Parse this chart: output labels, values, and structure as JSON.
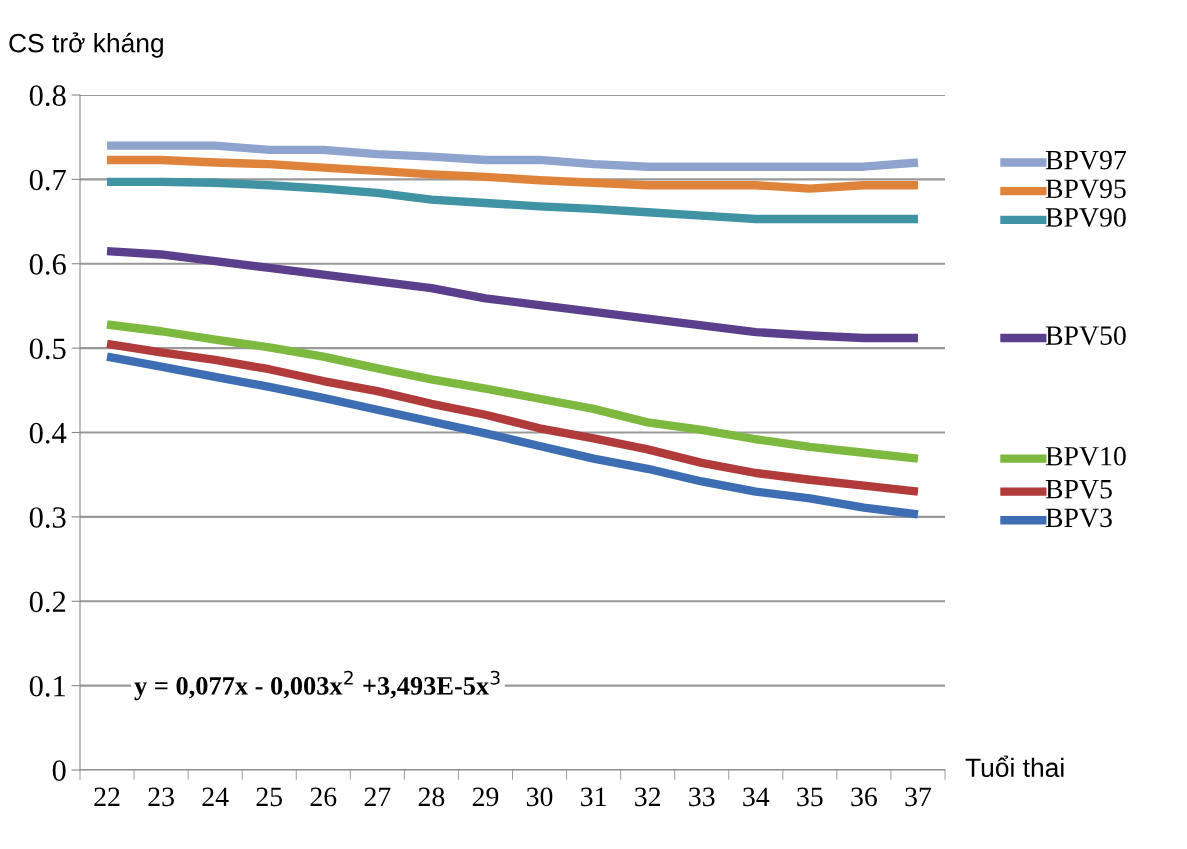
{
  "chart_data": {
    "type": "line",
    "ylabel": "CS trở kháng",
    "xlabel": "Tuổi thai",
    "categories": [
      "22",
      "23",
      "24",
      "25",
      "26",
      "27",
      "28",
      "29",
      "30",
      "31",
      "32",
      "33",
      "34",
      "35",
      "36",
      "37"
    ],
    "ylim": [
      0,
      0.8
    ],
    "yticks": [
      0,
      0.1,
      0.2,
      0.3,
      0.4,
      0.5,
      0.6,
      0.7,
      0.8
    ],
    "grid": "y",
    "legend": "right",
    "marker": "none",
    "line_style": "solid",
    "annotations": [
      "y = 0,077x - 0,003x$^{2}$ +3,493E-5x$^{3}$"
    ],
    "series": [
      {
        "name": "BPV97",
        "color": "#8fa3cf",
        "values": [
          0.74,
          0.74,
          0.74,
          0.735,
          0.735,
          0.73,
          0.727,
          0.723,
          0.723,
          0.718,
          0.715,
          0.715,
          0.715,
          0.715,
          0.715,
          0.72
        ]
      },
      {
        "name": "BPV95",
        "color": "#e0833a",
        "values": [
          0.723,
          0.723,
          0.72,
          0.718,
          0.714,
          0.71,
          0.706,
          0.703,
          0.699,
          0.696,
          0.693,
          0.693,
          0.693,
          0.689,
          0.693,
          0.693
        ]
      },
      {
        "name": "BPV90",
        "color": "#3f93a3",
        "values": [
          0.697,
          0.697,
          0.696,
          0.693,
          0.689,
          0.684,
          0.676,
          0.672,
          0.668,
          0.665,
          0.661,
          0.657,
          0.653,
          0.653,
          0.653,
          0.653
        ]
      },
      {
        "name": "BPV50",
        "color": "#5b3f8c",
        "values": [
          0.615,
          0.611,
          0.603,
          0.595,
          0.587,
          0.579,
          0.571,
          0.559,
          0.551,
          0.543,
          0.535,
          0.527,
          0.519,
          0.515,
          0.512,
          0.512
        ]
      },
      {
        "name": "BPV10",
        "color": "#7db83f",
        "values": [
          0.528,
          0.52,
          0.51,
          0.501,
          0.49,
          0.476,
          0.463,
          0.452,
          0.44,
          0.428,
          0.412,
          0.403,
          0.392,
          0.383,
          0.376,
          0.369
        ]
      },
      {
        "name": "BPV5",
        "color": "#b13a3a",
        "values": [
          0.505,
          0.495,
          0.486,
          0.475,
          0.461,
          0.449,
          0.434,
          0.421,
          0.405,
          0.393,
          0.38,
          0.364,
          0.352,
          0.344,
          0.337,
          0.33
        ]
      },
      {
        "name": "BPV3",
        "color": "#3d6db3",
        "values": [
          0.49,
          0.478,
          0.466,
          0.454,
          0.441,
          0.427,
          0.413,
          0.399,
          0.384,
          0.369,
          0.357,
          0.342,
          0.33,
          0.322,
          0.311,
          0.303
        ]
      }
    ]
  }
}
